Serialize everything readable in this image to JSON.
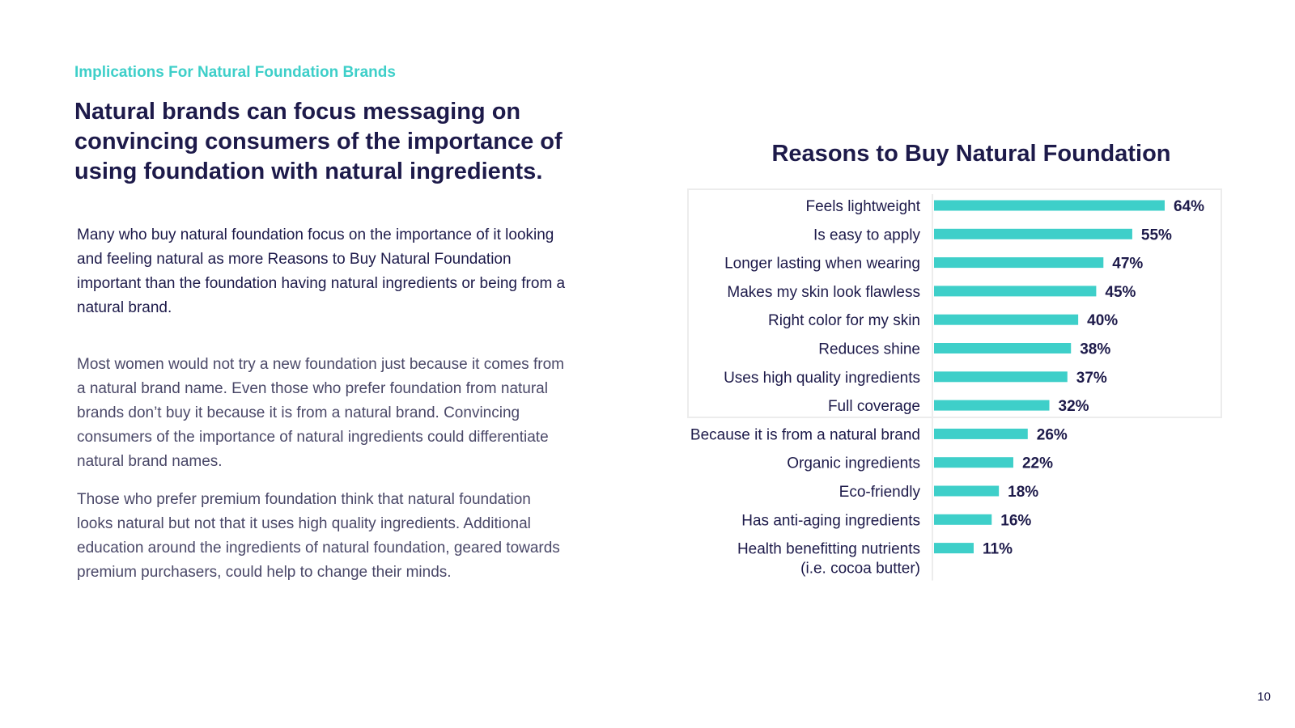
{
  "eyebrow": "Implications For Natural Foundation Brands",
  "headline": "Natural brands can focus messaging on convincing consumers of the importance of using foundation with natural ingredients.",
  "intro": "Many who buy natural foundation focus on the importance of it looking and feeling natural as more Reasons to Buy Natural Foundation important than the foundation having natural ingredients or being from a natural brand.",
  "paragraphs": [
    "Most women would not try a new foundation just because it comes from a natural brand name. Even those who prefer foundation from natural brands don’t buy it because it is from a natural brand. Convincing consumers of the importance of natural ingredients could differentiate natural brand names.",
    "Those who prefer premium foundation think that natural foundation looks natural but not that it uses high quality ingredients. Additional education around the ingredients of natural foundation, geared towards premium purchasers, could help to change their minds."
  ],
  "page_number": "10",
  "colors": {
    "accent": "#3ecfc9",
    "navy": "#1d1a4a",
    "body_text": "#4a4868"
  },
  "chart_data": {
    "type": "bar",
    "orientation": "horizontal",
    "title": "Reasons to Buy Natural Foundation",
    "categories": [
      [
        "Feels lightweight"
      ],
      [
        "Is easy to apply"
      ],
      [
        "Longer lasting when wearing"
      ],
      [
        "Makes my skin look flawless"
      ],
      [
        "Right color for my skin"
      ],
      [
        "Reduces shine"
      ],
      [
        "Uses high quality ingredients"
      ],
      [
        "Full coverage"
      ],
      [
        "Because it is from a natural brand"
      ],
      [
        "Organic ingredients"
      ],
      [
        "Eco-friendly"
      ],
      [
        "Has anti-aging ingredients"
      ],
      [
        "Health benefitting nutrients",
        "(i.e. cocoa butter)"
      ]
    ],
    "values": [
      64,
      55,
      47,
      45,
      40,
      38,
      37,
      32,
      26,
      22,
      18,
      16,
      11
    ],
    "value_suffix": "%",
    "highlighted_count": 8,
    "xlim": [
      0,
      64
    ],
    "xlabel": "",
    "ylabel": "",
    "grid": false,
    "legend": "none",
    "bar_color": "#3ecfc9"
  }
}
